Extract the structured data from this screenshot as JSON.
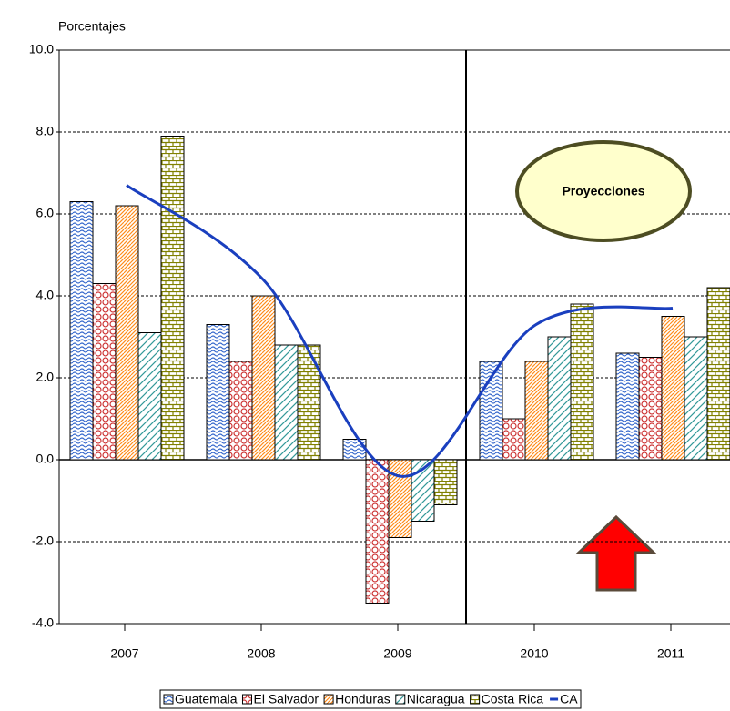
{
  "chart_data": {
    "type": "bar",
    "y_label": "Porcentajes",
    "annotation": "Proyecciones",
    "categories": [
      "2007",
      "2008",
      "2009",
      "2010",
      "2011"
    ],
    "series": [
      {
        "name": "Guatemala",
        "color": "#3366cc",
        "values": [
          6.3,
          3.3,
          0.5,
          2.4,
          2.6
        ]
      },
      {
        "name": "El Salvador",
        "color": "#cc3333",
        "values": [
          4.3,
          2.4,
          -3.5,
          1.0,
          2.5
        ]
      },
      {
        "name": "Honduras",
        "color": "#ff8c1a",
        "values": [
          6.2,
          4.0,
          -1.9,
          2.4,
          3.5
        ]
      },
      {
        "name": "Nicaragua",
        "color": "#339999",
        "values": [
          3.1,
          2.8,
          -1.5,
          3.0,
          3.0
        ]
      },
      {
        "name": "Costa Rica",
        "color": "#808000",
        "values": [
          7.9,
          2.8,
          -1.1,
          3.8,
          4.2
        ]
      },
      {
        "name": "CA",
        "color": "#1a3fbf",
        "type": "line",
        "values": [
          6.7,
          4.4,
          -0.4,
          3.3,
          3.7
        ]
      }
    ],
    "ylim": [
      -4,
      10
    ],
    "yticks": [
      {
        "value": -4,
        "label": "-4.0"
      },
      {
        "value": -2,
        "label": "-2.0"
      },
      {
        "value": 0,
        "label": "0.0"
      },
      {
        "value": 2,
        "label": "2.0"
      },
      {
        "value": 4,
        "label": "4.0"
      },
      {
        "value": 6,
        "label": "6.0"
      },
      {
        "value": 8,
        "label": "8.0"
      },
      {
        "value": 10,
        "label": "10.0"
      }
    ],
    "grid": true
  }
}
